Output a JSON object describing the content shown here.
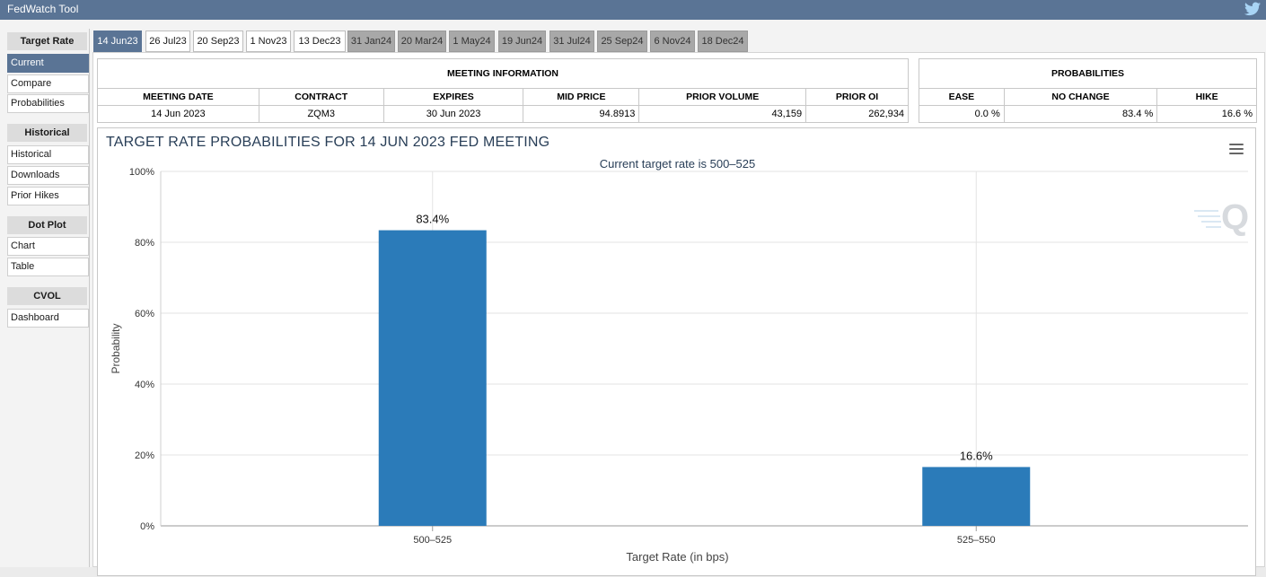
{
  "window": {
    "title": "FedWatch Tool",
    "twitter_icon": "twitter-bird-icon"
  },
  "sidebar": {
    "groups": [
      {
        "heading": "Target Rate",
        "items": [
          "Current",
          "Compare",
          "Probabilities"
        ]
      },
      {
        "heading": "Historical",
        "items": [
          "Historical",
          "Downloads",
          "Prior Hikes"
        ]
      },
      {
        "heading": "Dot Plot",
        "items": [
          "Chart",
          "Table"
        ]
      },
      {
        "heading": "CVOL",
        "items": [
          "Dashboard"
        ]
      }
    ],
    "active_item": "Current"
  },
  "tabs": [
    {
      "label": "14 Jun23",
      "state": "active"
    },
    {
      "label": "26 Jul23",
      "state": "normal"
    },
    {
      "label": "20 Sep23",
      "state": "normal"
    },
    {
      "label": "1 Nov23",
      "state": "normal"
    },
    {
      "label": "13 Dec23",
      "state": "normal"
    },
    {
      "label": "31 Jan24",
      "state": "future"
    },
    {
      "label": "20 Mar24",
      "state": "future"
    },
    {
      "label": "1 May24",
      "state": "future"
    },
    {
      "label": "19 Jun24",
      "state": "future"
    },
    {
      "label": "31 Jul24",
      "state": "future"
    },
    {
      "label": "25 Sep24",
      "state": "future"
    },
    {
      "label": "6 Nov24",
      "state": "future"
    },
    {
      "label": "18 Dec24",
      "state": "future"
    }
  ],
  "meeting_info": {
    "heading": "MEETING INFORMATION",
    "columns": [
      "MEETING DATE",
      "CONTRACT",
      "EXPIRES",
      "MID PRICE",
      "PRIOR VOLUME",
      "PRIOR OI"
    ],
    "values": [
      "14 Jun 2023",
      "ZQM3",
      "30 Jun 2023",
      "94.8913",
      "43,159",
      "262,934"
    ]
  },
  "probabilities": {
    "heading": "PROBABILITIES",
    "columns": [
      "EASE",
      "NO CHANGE",
      "HIKE"
    ],
    "values": [
      "0.0 %",
      "83.4 %",
      "16.6 %"
    ]
  },
  "chart": {
    "title": "TARGET RATE PROBABILITIES FOR 14 JUN 2023 FED MEETING",
    "menu_icon": "hamburger-menu-icon",
    "watermark_icon": "quikstrike-q-logo-icon",
    "bar_color": "#2b7bb9"
  },
  "chart_data": {
    "type": "bar",
    "title": "TARGET RATE PROBABILITIES FOR 14 JUN 2023 FED MEETING",
    "subtitle": "Current target rate is 500–525",
    "categories": [
      "500–525",
      "525–550"
    ],
    "values": [
      83.4,
      16.6
    ],
    "data_labels": [
      "83.4%",
      "16.6%"
    ],
    "xlabel": "Target Rate (in bps)",
    "ylabel": "Probability",
    "ylim": [
      0,
      100
    ],
    "yticks": [
      "0%",
      "20%",
      "40%",
      "60%",
      "80%",
      "100%"
    ],
    "grid": true,
    "legend": false
  }
}
